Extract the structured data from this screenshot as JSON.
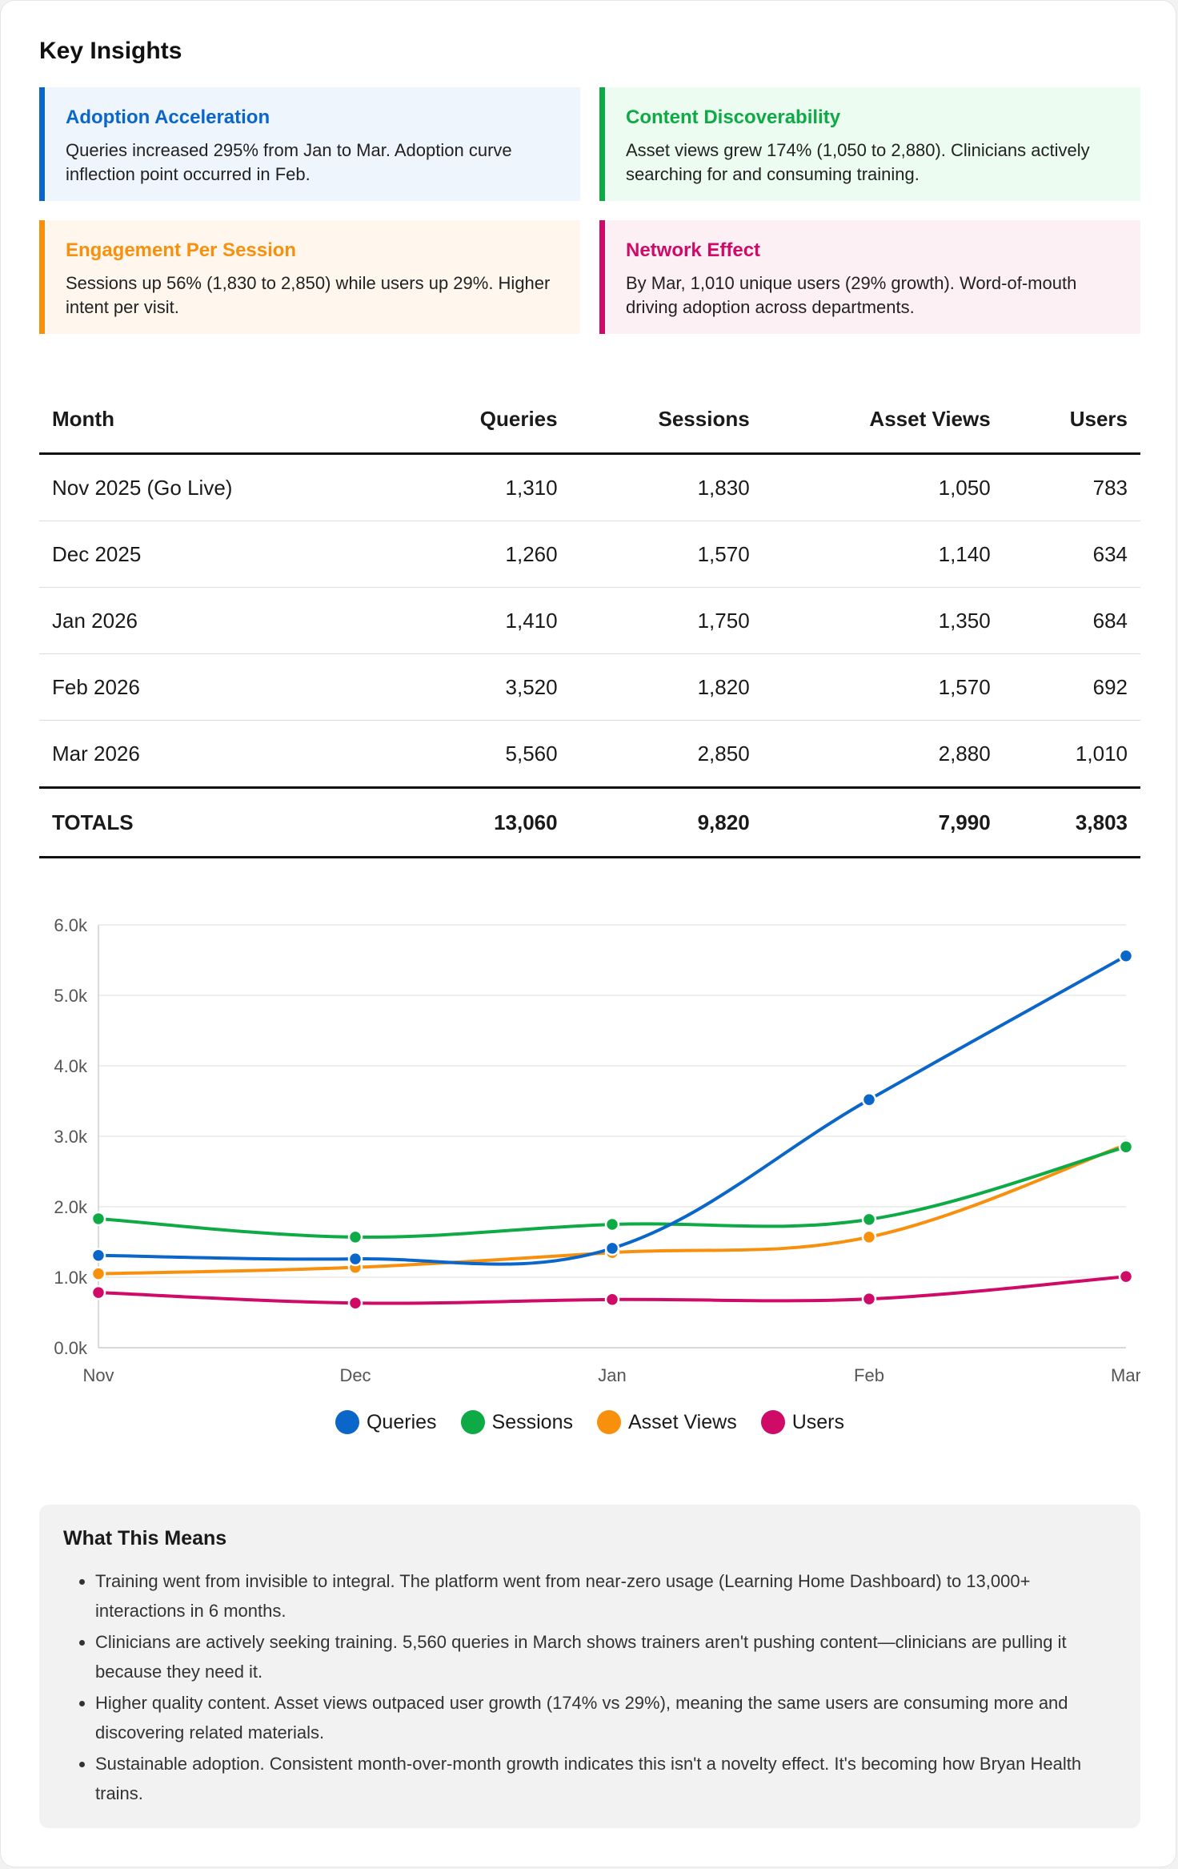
{
  "insights_title": "Key Insights",
  "insights": [
    {
      "title": "Adoption Acceleration",
      "text": "Queries increased 295% from Jan to Mar. Adoption curve inflection point occurred in Feb.",
      "color": "#0a66c8",
      "bg": "#eef5fd"
    },
    {
      "title": "Content Discoverability",
      "text": "Asset views grew 174% (1,050 to 2,880). Clinicians actively searching for and consuming training.",
      "color": "#0eaa45",
      "bg": "#ecfcf1"
    },
    {
      "title": "Engagement Per Session",
      "text": "Sessions up 56% (1,830 to 2,850) while users up 29%. Higher intent per visit.",
      "color": "#f7900d",
      "bg": "#fff6ee"
    },
    {
      "title": "Network Effect",
      "text": "By Mar, 1,010 unique users (29% growth). Word-of-mouth driving adoption across departments.",
      "color": "#cf0a67",
      "bg": "#fdf0f4"
    }
  ],
  "table": {
    "headers": [
      "Month",
      "Queries",
      "Sessions",
      "Asset Views",
      "Users"
    ],
    "rows": [
      [
        "Nov 2025 (Go Live)",
        "1,310",
        "1,830",
        "1,050",
        "783"
      ],
      [
        "Dec 2025",
        "1,260",
        "1,570",
        "1,140",
        "634"
      ],
      [
        "Jan 2026",
        "1,410",
        "1,750",
        "1,350",
        "684"
      ],
      [
        "Feb 2026",
        "3,520",
        "1,820",
        "1,570",
        "692"
      ],
      [
        "Mar 2026",
        "5,560",
        "2,850",
        "2,880",
        "1,010"
      ]
    ],
    "totals": [
      "TOTALS",
      "13,060",
      "9,820",
      "7,990",
      "3,803"
    ]
  },
  "chart_data": {
    "type": "line",
    "categories": [
      "Nov",
      "Dec",
      "Jan",
      "Feb",
      "Mar"
    ],
    "yticks": [
      "0.0k",
      "1.0k",
      "2.0k",
      "3.0k",
      "4.0k",
      "5.0k",
      "6.0k"
    ],
    "ylim": [
      0,
      6000
    ],
    "grid": true,
    "legend": "bottom-center",
    "series": [
      {
        "name": "Queries",
        "color": "#0a66c8",
        "values": [
          1310,
          1260,
          1410,
          3520,
          5560
        ]
      },
      {
        "name": "Sessions",
        "color": "#0eaa45",
        "values": [
          1830,
          1570,
          1750,
          1820,
          2850
        ]
      },
      {
        "name": "Asset Views",
        "color": "#f7900d",
        "values": [
          1050,
          1140,
          1350,
          1570,
          2880
        ]
      },
      {
        "name": "Users",
        "color": "#cf0a67",
        "values": [
          783,
          634,
          684,
          692,
          1010
        ]
      }
    ]
  },
  "means": {
    "title": "What This Means",
    "items": [
      "Training went from invisible to integral. The platform went from near-zero usage (Learning Home Dashboard) to 13,000+ interactions in 6 months.",
      "Clinicians are actively seeking training. 5,560 queries in March shows trainers aren't pushing content—clinicians are pulling it because they need it.",
      "Higher quality content. Asset views outpaced user growth (174% vs 29%), meaning the same users are consuming more and discovering related materials.",
      "Sustainable adoption. Consistent month-over-month growth indicates this isn't a novelty effect. It's becoming how Bryan Health trains."
    ]
  }
}
